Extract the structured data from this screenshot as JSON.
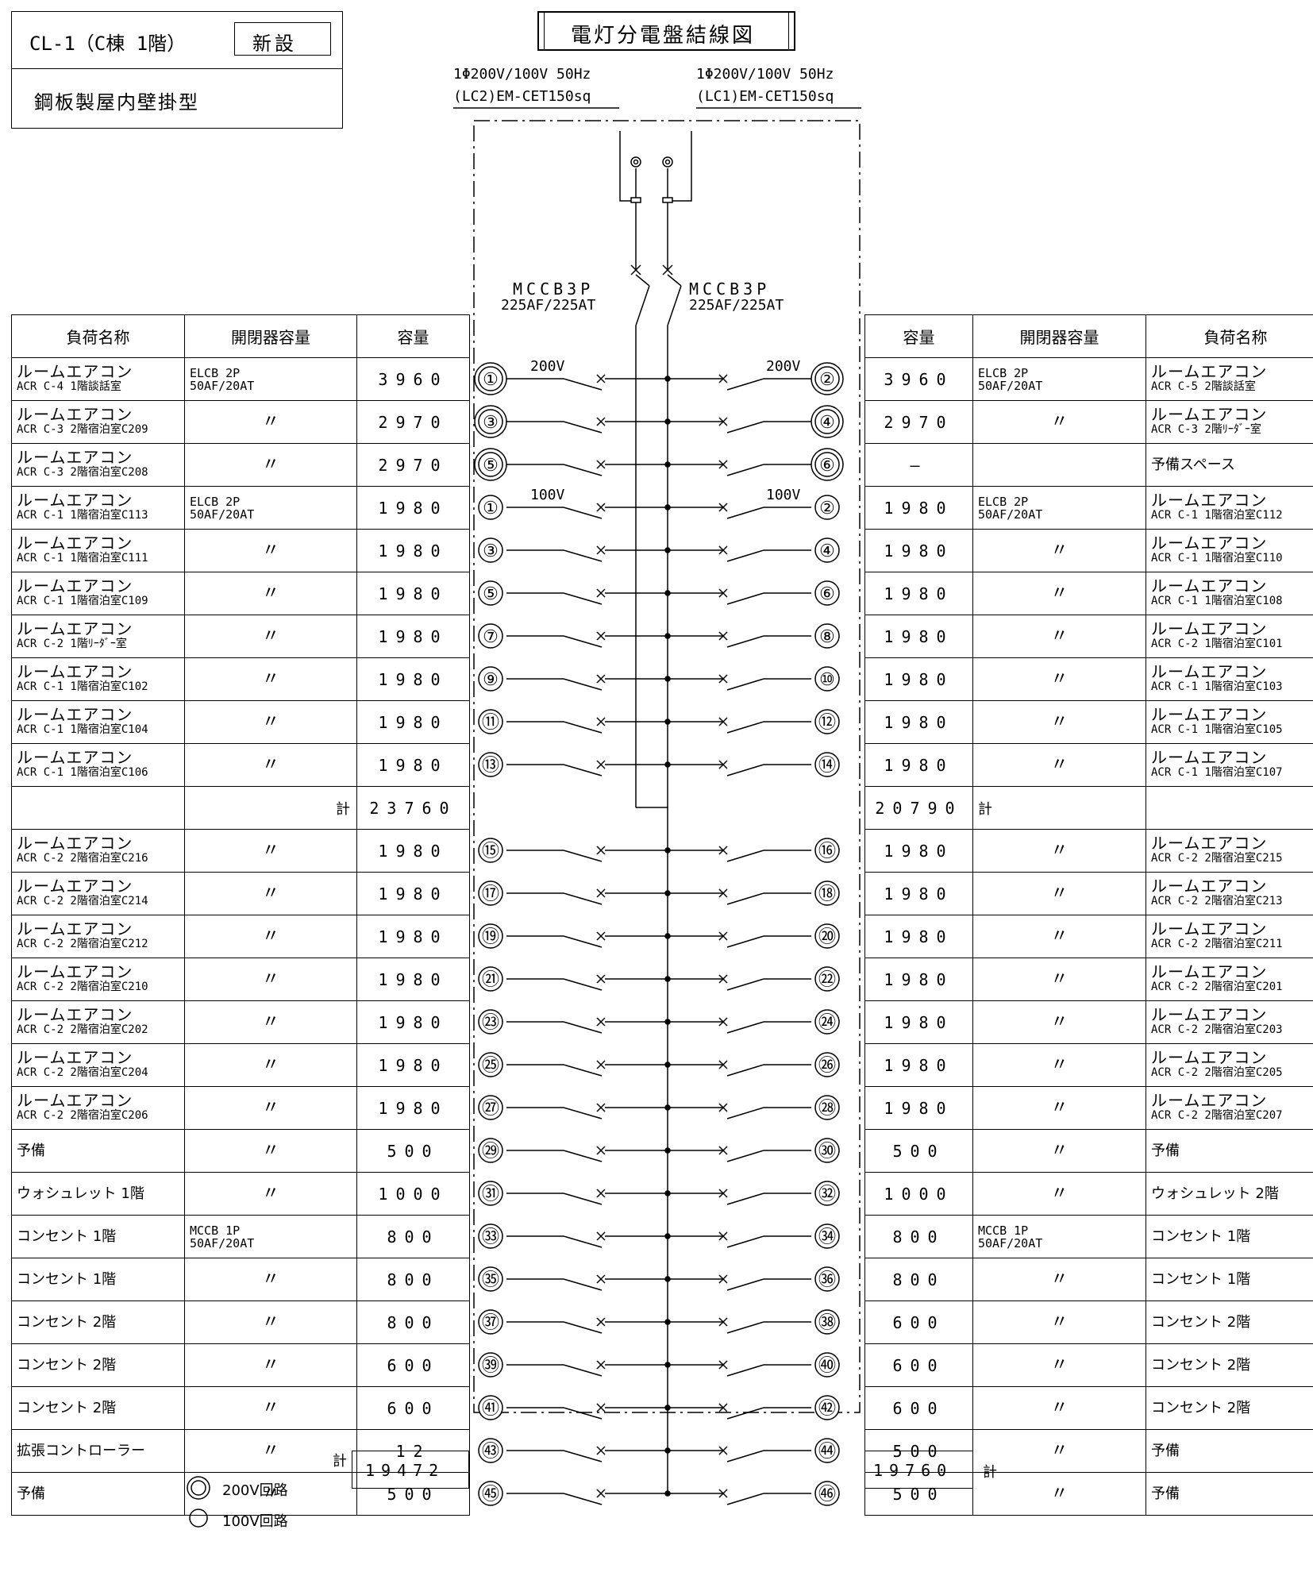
{
  "header": {
    "panel_id": "CL-1（C棟 1階）",
    "badge": "新設",
    "panel_type": "鋼板製屋内壁掛型",
    "title": "電灯分電盤結線図"
  },
  "feeds": {
    "left": {
      "spec": "1Φ200V/100V 50Hz",
      "cable": "(LC2)EM-CET150sq"
    },
    "right": {
      "spec": "1Φ200V/100V 50Hz",
      "cable": "(LC1)EM-CET150sq"
    }
  },
  "main_breakers": {
    "left": {
      "type": "MCCB3P",
      "rating": "225AF/225AT"
    },
    "right": {
      "type": "MCCB3P",
      "rating": "225AF/225AT"
    }
  },
  "voltage_labels": {
    "v200": "200V",
    "v100": "100V"
  },
  "columns": {
    "load": "負荷名称",
    "switch": "開閉器容量",
    "capacity": "容量"
  },
  "total_label": "計",
  "circuits": [
    {
      "ln": "①",
      "rn": "②",
      "double": true,
      "l": {
        "n1": "ルームエアコン",
        "n2": "ACR C-4 1階談話室",
        "sw1": "ELCB 2P",
        "sw2": "50AF/20AT",
        "cap": "3960"
      },
      "r": {
        "n1": "ルームエアコン",
        "n2": "ACR C-5 2階談話室",
        "sw1": "ELCB 2P",
        "sw2": "50AF/20AT",
        "cap": "3960"
      }
    },
    {
      "ln": "③",
      "rn": "④",
      "double": true,
      "l": {
        "n1": "ルームエアコン",
        "n2": "ACR C-3 2階宿泊室C209",
        "sw1": "〃",
        "cap": "2970"
      },
      "r": {
        "n1": "ルームエアコン",
        "n2": "ACR C-3 2階ﾘｰﾀﾞｰ室",
        "sw1": "〃",
        "cap": "2970"
      }
    },
    {
      "ln": "⑤",
      "rn": "⑥",
      "double": true,
      "l": {
        "n1": "ルームエアコン",
        "n2": "ACR C-3 2階宿泊室C208",
        "sw1": "〃",
        "cap": "2970"
      },
      "r": {
        "n1": "予備スペース",
        "cap": "—",
        "sw1": ""
      }
    },
    {
      "ln": "①",
      "rn": "②",
      "l": {
        "n1": "ルームエアコン",
        "n2": "ACR C-1 1階宿泊室C113",
        "sw1": "ELCB 2P",
        "sw2": "50AF/20AT",
        "cap": "1980"
      },
      "r": {
        "n1": "ルームエアコン",
        "n2": "ACR C-1 1階宿泊室C112",
        "sw1": "ELCB 2P",
        "sw2": "50AF/20AT",
        "cap": "1980"
      }
    },
    {
      "ln": "③",
      "rn": "④",
      "l": {
        "n1": "ルームエアコン",
        "n2": "ACR C-1 1階宿泊室C111",
        "sw1": "〃",
        "cap": "1980"
      },
      "r": {
        "n1": "ルームエアコン",
        "n2": "ACR C-1 1階宿泊室C110",
        "sw1": "〃",
        "cap": "1980"
      }
    },
    {
      "ln": "⑤",
      "rn": "⑥",
      "l": {
        "n1": "ルームエアコン",
        "n2": "ACR C-1 1階宿泊室C109",
        "sw1": "〃",
        "cap": "1980"
      },
      "r": {
        "n1": "ルームエアコン",
        "n2": "ACR C-1 1階宿泊室C108",
        "sw1": "〃",
        "cap": "1980"
      }
    },
    {
      "ln": "⑦",
      "rn": "⑧",
      "l": {
        "n1": "ルームエアコン",
        "n2": "ACR C-2 1階ﾘｰﾀﾞｰ室",
        "sw1": "〃",
        "cap": "1980"
      },
      "r": {
        "n1": "ルームエアコン",
        "n2": "ACR C-2 1階宿泊室C101",
        "sw1": "〃",
        "cap": "1980"
      }
    },
    {
      "ln": "⑨",
      "rn": "⑩",
      "l": {
        "n1": "ルームエアコン",
        "n2": "ACR C-1 1階宿泊室C102",
        "sw1": "〃",
        "cap": "1980"
      },
      "r": {
        "n1": "ルームエアコン",
        "n2": "ACR C-1 1階宿泊室C103",
        "sw1": "〃",
        "cap": "1980"
      }
    },
    {
      "ln": "⑪",
      "rn": "⑫",
      "l": {
        "n1": "ルームエアコン",
        "n2": "ACR C-1 1階宿泊室C104",
        "sw1": "〃",
        "cap": "1980"
      },
      "r": {
        "n1": "ルームエアコン",
        "n2": "ACR C-1 1階宿泊室C105",
        "sw1": "〃",
        "cap": "1980"
      }
    },
    {
      "ln": "⑬",
      "rn": "⑭",
      "l": {
        "n1": "ルームエアコン",
        "n2": "ACR C-1 1階宿泊室C106",
        "sw1": "〃",
        "cap": "1980"
      },
      "r": {
        "n1": "ルームエアコン",
        "n2": "ACR C-1 1階宿泊室C107",
        "sw1": "〃",
        "cap": "1980"
      }
    },
    {
      "subtotal": true,
      "l": {
        "cap": "23760"
      },
      "r": {
        "cap": "20790"
      }
    },
    {
      "ln": "⑮",
      "rn": "⑯",
      "l": {
        "n1": "ルームエアコン",
        "n2": "ACR C-2 2階宿泊室C216",
        "sw1": "〃",
        "cap": "1980"
      },
      "r": {
        "n1": "ルームエアコン",
        "n2": "ACR C-2 2階宿泊室C215",
        "sw1": "〃",
        "cap": "1980"
      }
    },
    {
      "ln": "⑰",
      "rn": "⑱",
      "l": {
        "n1": "ルームエアコン",
        "n2": "ACR C-2 2階宿泊室C214",
        "sw1": "〃",
        "cap": "1980"
      },
      "r": {
        "n1": "ルームエアコン",
        "n2": "ACR C-2 2階宿泊室C213",
        "sw1": "〃",
        "cap": "1980"
      }
    },
    {
      "ln": "⑲",
      "rn": "⑳",
      "l": {
        "n1": "ルームエアコン",
        "n2": "ACR C-2 2階宿泊室C212",
        "sw1": "〃",
        "cap": "1980"
      },
      "r": {
        "n1": "ルームエアコン",
        "n2": "ACR C-2 2階宿泊室C211",
        "sw1": "〃",
        "cap": "1980"
      }
    },
    {
      "ln": "㉑",
      "rn": "㉒",
      "l": {
        "n1": "ルームエアコン",
        "n2": "ACR C-2 2階宿泊室C210",
        "sw1": "〃",
        "cap": "1980"
      },
      "r": {
        "n1": "ルームエアコン",
        "n2": "ACR C-2 2階宿泊室C201",
        "sw1": "〃",
        "cap": "1980"
      }
    },
    {
      "ln": "㉓",
      "rn": "㉔",
      "l": {
        "n1": "ルームエアコン",
        "n2": "ACR C-2 2階宿泊室C202",
        "sw1": "〃",
        "cap": "1980"
      },
      "r": {
        "n1": "ルームエアコン",
        "n2": "ACR C-2 2階宿泊室C203",
        "sw1": "〃",
        "cap": "1980"
      }
    },
    {
      "ln": "㉕",
      "rn": "㉖",
      "l": {
        "n1": "ルームエアコン",
        "n2": "ACR C-2 2階宿泊室C204",
        "sw1": "〃",
        "cap": "1980"
      },
      "r": {
        "n1": "ルームエアコン",
        "n2": "ACR C-2 2階宿泊室C205",
        "sw1": "〃",
        "cap": "1980"
      }
    },
    {
      "ln": "㉗",
      "rn": "㉘",
      "l": {
        "n1": "ルームエアコン",
        "n2": "ACR C-2 2階宿泊室C206",
        "sw1": "〃",
        "cap": "1980"
      },
      "r": {
        "n1": "ルームエアコン",
        "n2": "ACR C-2 2階宿泊室C207",
        "sw1": "〃",
        "cap": "1980"
      }
    },
    {
      "ln": "㉙",
      "rn": "㉚",
      "l": {
        "n1": "予備",
        "sw1": "〃",
        "cap": "500"
      },
      "r": {
        "n1": "予備",
        "sw1": "〃",
        "cap": "500"
      }
    },
    {
      "ln": "㉛",
      "rn": "㉜",
      "l": {
        "n1": "ウォシュレット 1階",
        "sw1": "〃",
        "cap": "1000"
      },
      "r": {
        "n1": "ウォシュレット 2階",
        "sw1": "〃",
        "cap": "1000"
      }
    },
    {
      "ln": "㉝",
      "rn": "㉞",
      "l": {
        "n1": "コンセント 1階",
        "sw1": "MCCB 1P",
        "sw2": "50AF/20AT",
        "cap": "800"
      },
      "r": {
        "n1": "コンセント 1階",
        "sw1": "MCCB 1P",
        "sw2": "50AF/20AT",
        "cap": "800"
      }
    },
    {
      "ln": "㉟",
      "rn": "㊱",
      "l": {
        "n1": "コンセント 1階",
        "sw1": "〃",
        "cap": "800"
      },
      "r": {
        "n1": "コンセント 1階",
        "sw1": "〃",
        "cap": "800"
      }
    },
    {
      "ln": "㊲",
      "rn": "㊳",
      "l": {
        "n1": "コンセント 2階",
        "sw1": "〃",
        "cap": "800"
      },
      "r": {
        "n1": "コンセント 2階",
        "sw1": "〃",
        "cap": "600"
      }
    },
    {
      "ln": "㊴",
      "rn": "㊵",
      "l": {
        "n1": "コンセント 2階",
        "sw1": "〃",
        "cap": "600"
      },
      "r": {
        "n1": "コンセント 2階",
        "sw1": "〃",
        "cap": "600"
      }
    },
    {
      "ln": "㊶",
      "rn": "㊷",
      "l": {
        "n1": "コンセント 2階",
        "sw1": "〃",
        "cap": "600"
      },
      "r": {
        "n1": "コンセント 2階",
        "sw1": "〃",
        "cap": "600"
      }
    },
    {
      "ln": "㊸",
      "rn": "㊹",
      "l": {
        "n1": "拡張コントローラー",
        "sw1": "〃",
        "cap": "12"
      },
      "r": {
        "n1": "予備",
        "sw1": "〃",
        "cap": "500"
      }
    },
    {
      "ln": "㊺",
      "rn": "㊻",
      "l": {
        "n1": "予備",
        "sw1": "〃",
        "cap": "500"
      },
      "r": {
        "n1": "予備",
        "sw1": "〃",
        "cap": "500"
      }
    }
  ],
  "totals": {
    "left": "19472",
    "right": "19760"
  },
  "legend": [
    {
      "symbol": "double-circle",
      "label": "200V回路"
    },
    {
      "symbol": "single-circle",
      "label": "100V回路"
    }
  ]
}
